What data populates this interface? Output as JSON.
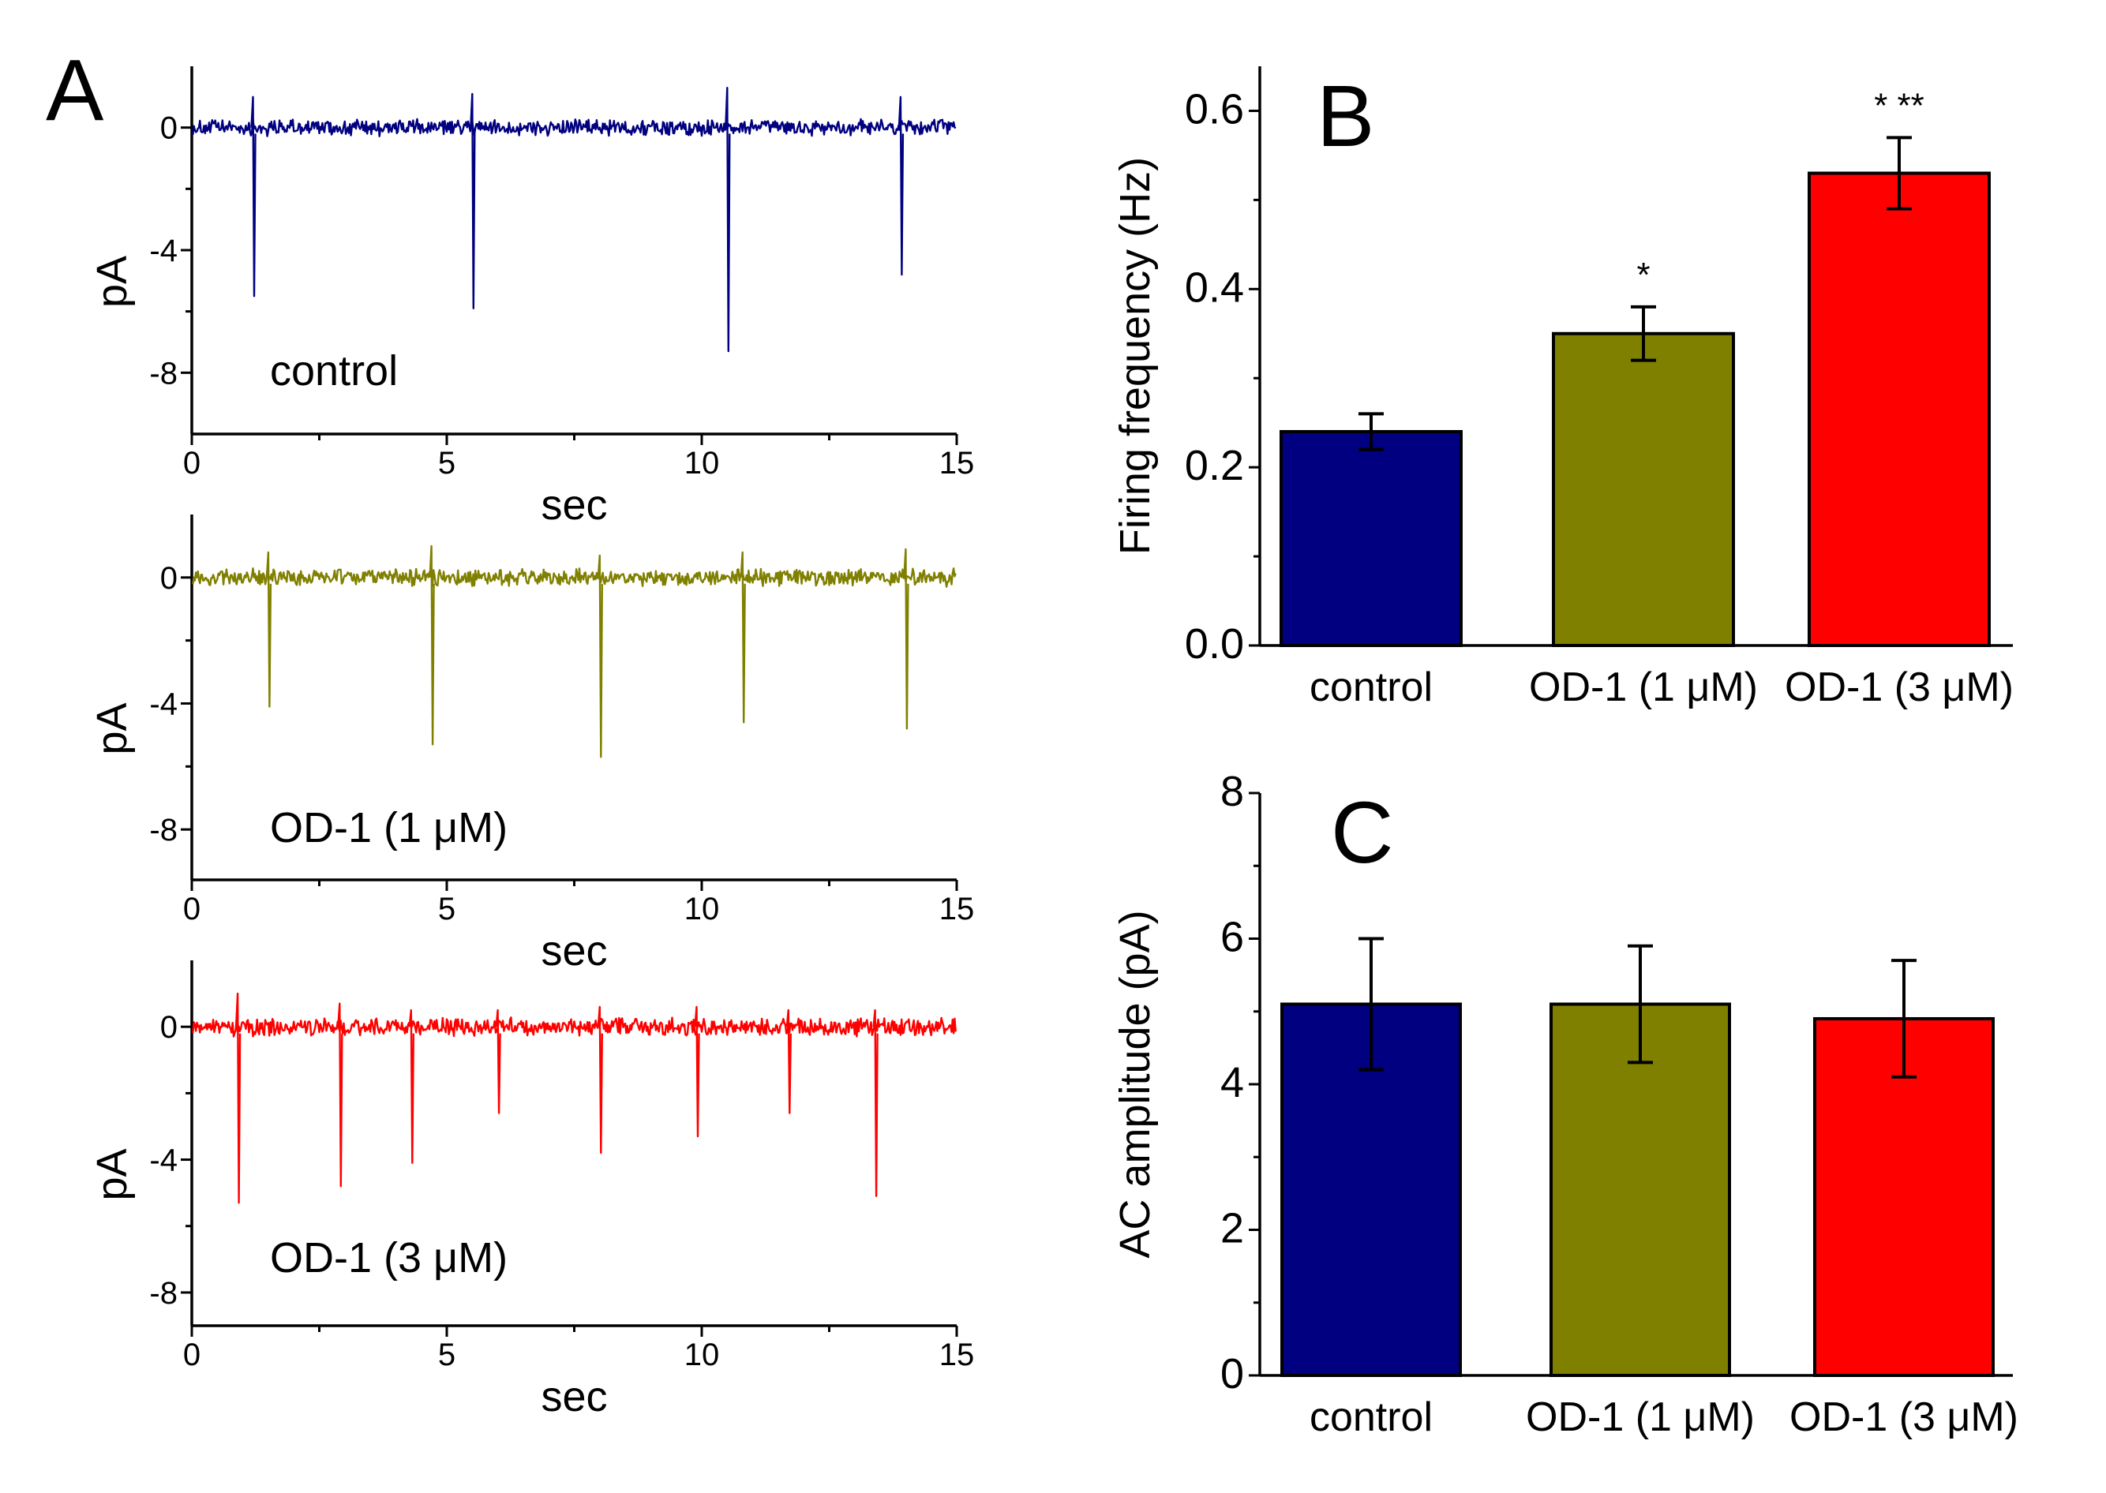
{
  "colors": {
    "control": "#000080",
    "od1_1uM": "#808000",
    "od1_3uM": "#ff0000"
  },
  "panel_labels": [
    "A",
    "B",
    "C"
  ],
  "chart_data": [
    {
      "panel": "A",
      "type": "line",
      "trace_label": "control",
      "xlabel": "sec",
      "ylabel": "pA",
      "xlim": [
        0,
        15
      ],
      "ylim": [
        -10,
        2
      ],
      "xticks": [
        0,
        5,
        10,
        15
      ],
      "yticks": [
        0,
        -4,
        -8
      ],
      "xtick_labels": [
        "0",
        "5",
        "10",
        "15"
      ],
      "ytick_labels": [
        "0",
        "-4",
        "-8"
      ],
      "events": [
        {
          "t": 1.2,
          "min": -5.5,
          "max": 1.0
        },
        {
          "t": 5.5,
          "min": -5.9,
          "max": 1.1
        },
        {
          "t": 10.5,
          "min": -7.3,
          "max": 1.3
        },
        {
          "t": 13.9,
          "min": -4.8,
          "max": 1.0
        }
      ]
    },
    {
      "panel": "A",
      "type": "line",
      "trace_label": "OD-1 (1 μM)",
      "xlabel": "sec",
      "ylabel": "pA",
      "xlim": [
        0,
        15
      ],
      "ylim": [
        -9.6,
        2
      ],
      "xticks": [
        0,
        5,
        10,
        15
      ],
      "yticks": [
        0,
        -4,
        -8
      ],
      "xtick_labels": [
        "0",
        "5",
        "10",
        "15"
      ],
      "ytick_labels": [
        "0",
        "-4",
        "-8"
      ],
      "events": [
        {
          "t": 1.5,
          "min": -4.1,
          "max": 0.8
        },
        {
          "t": 4.7,
          "min": -5.3,
          "max": 1.0
        },
        {
          "t": 8.0,
          "min": -5.7,
          "max": 0.7
        },
        {
          "t": 10.8,
          "min": -4.6,
          "max": 0.8
        },
        {
          "t": 14.0,
          "min": -4.8,
          "max": 0.9
        }
      ]
    },
    {
      "panel": "A",
      "type": "line",
      "trace_label": "OD-1 (3 μM)",
      "xlabel": "sec",
      "ylabel": "pA",
      "xlim": [
        0,
        15
      ],
      "ylim": [
        -9.0,
        2
      ],
      "xticks": [
        0,
        5,
        10,
        15
      ],
      "yticks": [
        0,
        -4,
        -8
      ],
      "xtick_labels": [
        "0",
        "5",
        "10",
        "15"
      ],
      "ytick_labels": [
        "0",
        "-4",
        "-8"
      ],
      "events": [
        {
          "t": 0.9,
          "min": -5.3,
          "max": 1.0
        },
        {
          "t": 2.9,
          "min": -4.8,
          "max": 0.7
        },
        {
          "t": 4.3,
          "min": -4.1,
          "max": 0.5
        },
        {
          "t": 6.0,
          "min": -2.6,
          "max": 0.5
        },
        {
          "t": 8.0,
          "min": -3.8,
          "max": 0.6
        },
        {
          "t": 9.9,
          "min": -3.3,
          "max": 0.6
        },
        {
          "t": 11.7,
          "min": -2.6,
          "max": 0.5
        },
        {
          "t": 13.4,
          "min": -5.1,
          "max": 0.5
        }
      ]
    },
    {
      "panel": "B",
      "type": "bar",
      "categories": [
        "control",
        "OD-1 (1 μM)",
        "OD-1 (3 μM)"
      ],
      "values": [
        0.24,
        0.35,
        0.53
      ],
      "errors": [
        0.02,
        0.03,
        0.04
      ],
      "significance": [
        "",
        "*",
        "* **"
      ],
      "ylabel": "Firing frequency (Hz)",
      "ylim": [
        0,
        0.65
      ],
      "yticks": [
        0.0,
        0.2,
        0.4,
        0.6
      ],
      "ytick_labels": [
        "0.0",
        "0.2",
        "0.4",
        "0.6"
      ]
    },
    {
      "panel": "C",
      "type": "bar",
      "categories": [
        "control",
        "OD-1 (1 μM)",
        "OD-1 (3 μM)"
      ],
      "values": [
        5.1,
        5.1,
        4.9
      ],
      "errors": [
        0.9,
        0.8,
        0.8
      ],
      "ylabel": "AC amplitude (pA)",
      "ylim": [
        0,
        8
      ],
      "yticks": [
        0,
        2,
        4,
        6,
        8
      ],
      "ytick_labels": [
        "0",
        "2",
        "4",
        "6",
        "8"
      ]
    }
  ]
}
